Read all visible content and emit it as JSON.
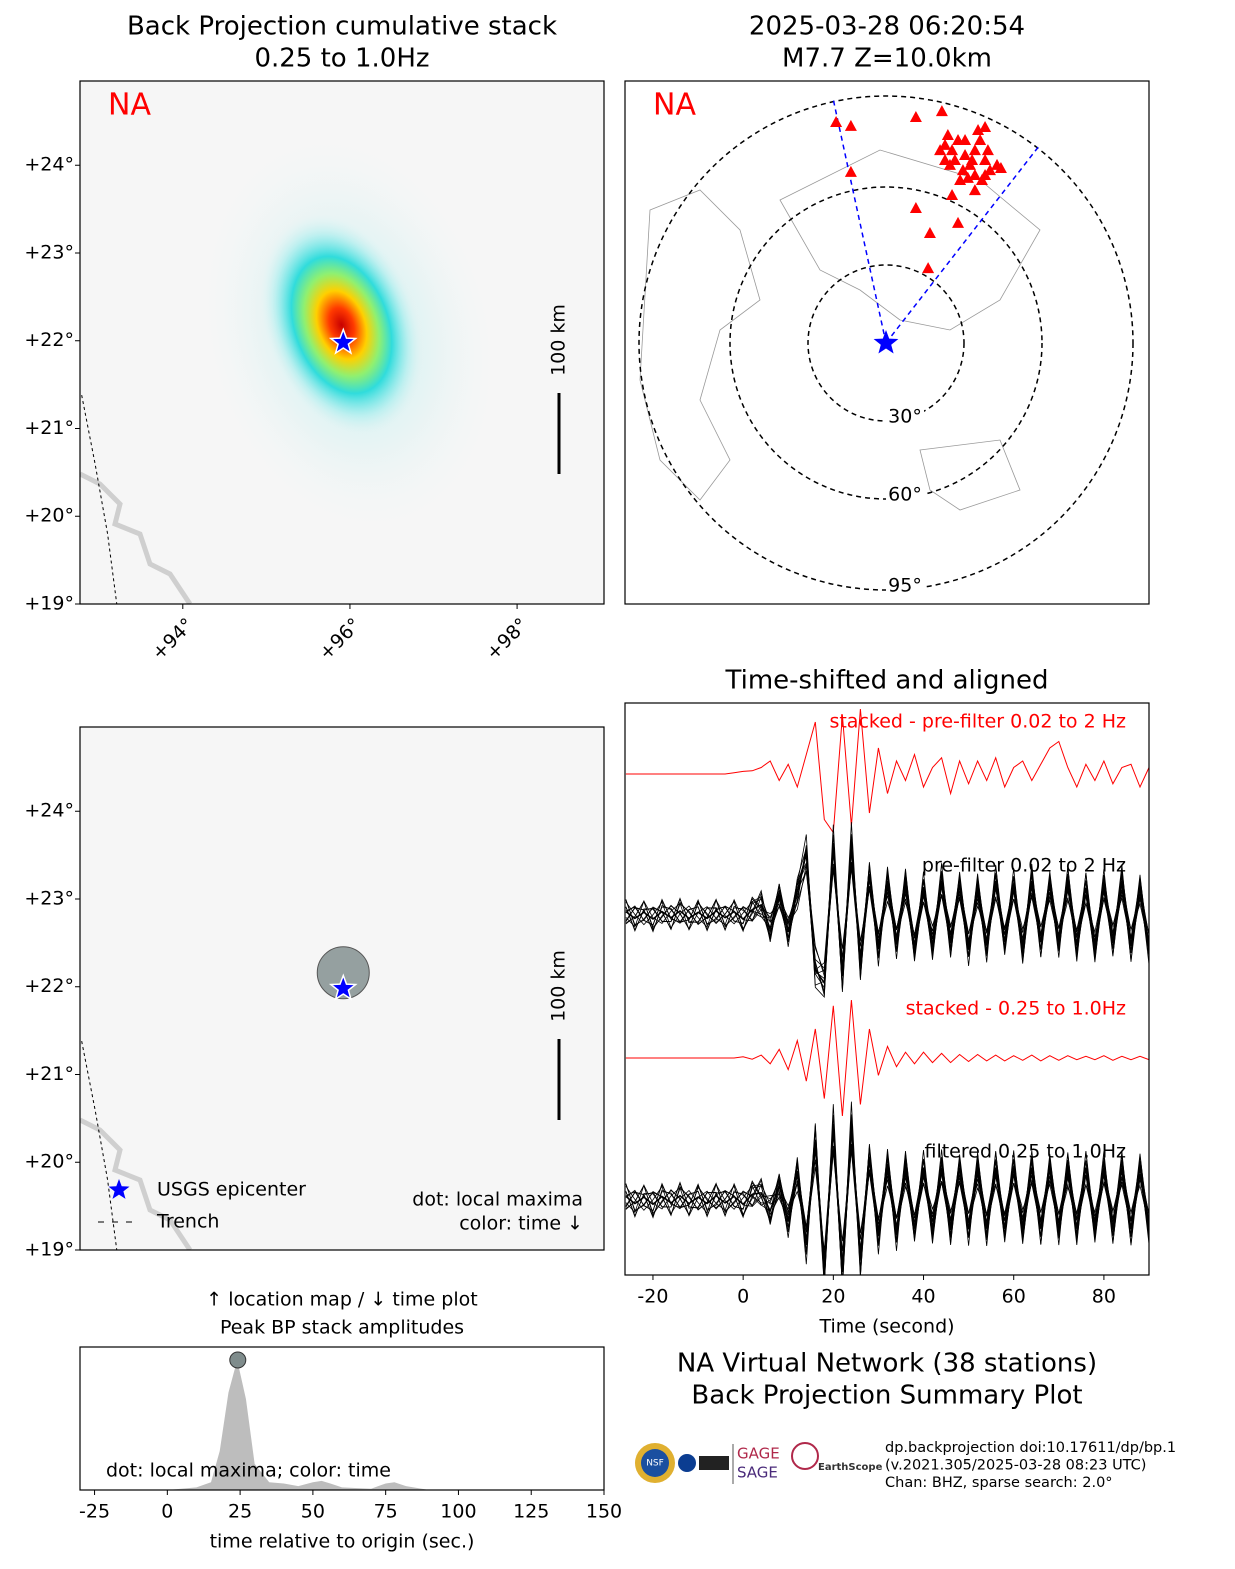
{
  "chart_data": [
    {
      "type": "map",
      "title": "Back Projection cumulative stack",
      "subtitle": "0.25 to 1.0Hz",
      "network": "NA",
      "xlim": [
        92.77,
        99.04
      ],
      "ylim": [
        19,
        24.96
      ],
      "xticks": [
        {
          "value": 94,
          "label": "+94°"
        },
        {
          "value": 96,
          "label": "+96°"
        },
        {
          "value": 98,
          "label": "+98°"
        }
      ],
      "yticks": [
        {
          "value": 19,
          "label": "+19°"
        },
        {
          "value": 20,
          "label": "+20°"
        },
        {
          "value": 21,
          "label": "+21°"
        },
        {
          "value": 22,
          "label": "+22°"
        },
        {
          "value": 23,
          "label": "+23°"
        },
        {
          "value": 24,
          "label": "+24°"
        }
      ],
      "scale_bar": "100 km",
      "peak": [
        95.9,
        22.18
      ],
      "epicenter": [
        95.92,
        21.98
      ],
      "trench": {
        "x": [
          92.79,
          92.95,
          93.1,
          93.21
        ],
        "y": [
          21.38,
          20.6,
          19.8,
          19.0
        ]
      }
    },
    {
      "type": "polar",
      "title": "2025-03-28 06:20:54",
      "subtitle": "M7.7 Z=10.0km",
      "network": "NA",
      "rticks": [
        {
          "value": 30,
          "label": "30°"
        },
        {
          "value": 60,
          "label": "60°"
        },
        {
          "value": 95,
          "label": "95°"
        }
      ],
      "beam_edges": {
        "x": [
          -20.4,
          59.2
        ],
        "y": [
          94.2,
          76.2
        ]
      },
      "stations": {
        "color": "#ff0000",
        "x": [
          -19.2,
          -13.5,
          -13.5,
          11.5,
          21.5,
          23.8,
          25.4,
          27.7,
          26.5,
          30.4,
          29.6,
          32.3,
          34.2,
          35.4,
          38.1,
          36.2,
          38.1,
          34.2,
          40.0,
          42.7,
          44.2,
          31.5,
          38.1,
          25.4,
          11.5,
          16.9,
          27.7,
          16.2,
          22.7,
          28.5,
          33.1,
          39.2,
          24.6,
          36.9,
          20.8,
          30.4,
          34.2,
          22.7
        ],
        "y": [
          85.0,
          83.5,
          65.8,
          86.9,
          89.2,
          80.0,
          74.2,
          78.1,
          70.4,
          72.3,
          66.5,
          68.5,
          74.2,
          81.9,
          83.1,
          78.1,
          70.4,
          64.6,
          66.5,
          68.5,
          67.3,
          63.5,
          64.6,
          56.9,
          51.9,
          42.3,
          46.2,
          28.8,
          76.2,
          62.7,
          70.4,
          74.2,
          68.5,
          62.7,
          74.2,
          78.1,
          58.8,
          70.4
        ]
      }
    },
    {
      "type": "map",
      "xlim": [
        92.77,
        99.04
      ],
      "ylim": [
        19,
        24.96
      ],
      "yticks": [
        {
          "value": 19,
          "label": "+19°"
        },
        {
          "value": 20,
          "label": "+20°"
        },
        {
          "value": 21,
          "label": "+21°"
        },
        {
          "value": 22,
          "label": "+22°"
        },
        {
          "value": 23,
          "label": "+23°"
        },
        {
          "value": 24,
          "label": "+24°"
        }
      ],
      "scale_bar": "100 km",
      "epicenter": [
        95.92,
        21.98
      ],
      "maxima": {
        "x": [
          95.92
        ],
        "y": [
          22.16
        ]
      },
      "trench": {
        "x": [
          92.79,
          92.95,
          93.1,
          93.21
        ],
        "y": [
          21.38,
          20.6,
          19.8,
          19.0
        ]
      },
      "legend": [
        "USGS epicenter",
        "Trench"
      ],
      "annotations": [
        "dot: local maxima",
        "color: time ↓"
      ]
    },
    {
      "type": "area",
      "title": "↑ location map / ↓ time plot",
      "subtitle": "Peak BP stack amplitudes",
      "xlabel": "time relative to origin (sec.)",
      "annotation": "dot: local maxima; color: time",
      "xlim": [
        -30,
        150
      ],
      "ylim": [
        0,
        1.1
      ],
      "xticks": [
        -25,
        0,
        25,
        50,
        75,
        100,
        125,
        150
      ],
      "x": [
        -30,
        0,
        10,
        15,
        18,
        21,
        24,
        27,
        30,
        35,
        40,
        45,
        50,
        53,
        56,
        60,
        70,
        75,
        78,
        82,
        90,
        150
      ],
      "values": [
        0,
        0,
        0.02,
        0.06,
        0.3,
        0.75,
        1.0,
        0.7,
        0.2,
        0.06,
        0.05,
        0.03,
        0.06,
        0.07,
        0.05,
        0.02,
        0.01,
        0.05,
        0.06,
        0.03,
        0,
        0
      ],
      "maxima": {
        "x": [
          24.2
        ],
        "y": [
          1.0
        ]
      }
    },
    {
      "type": "waveform",
      "title": "Time-shifted and aligned",
      "xlabel": "Time (second)",
      "xlim": [
        -26.2,
        90
      ],
      "xticks": [
        -20,
        0,
        20,
        40,
        60,
        80
      ],
      "x": [
        -26,
        -24,
        -22,
        -20,
        -18,
        -16,
        -14,
        -12,
        -10,
        -8,
        -6,
        -4,
        -2,
        0,
        2,
        4,
        6,
        8,
        10,
        12,
        14,
        16,
        18,
        20,
        22,
        24,
        26,
        28,
        30,
        32,
        34,
        36,
        38,
        40,
        42,
        44,
        46,
        48,
        50,
        52,
        54,
        56,
        58,
        60,
        62,
        64,
        66,
        68,
        70,
        72,
        74,
        76,
        78,
        80,
        82,
        84,
        86,
        88,
        90
      ],
      "series": [
        {
          "name": "stacked - pre-filter 0.02 to 2 Hz",
          "color": "#ff0000",
          "values": [
            0,
            0,
            0,
            0,
            0,
            0,
            0,
            0,
            0,
            0,
            0,
            0,
            0.02,
            0.04,
            0.05,
            0.1,
            0.2,
            -0.1,
            0.15,
            -0.2,
            0.3,
            0.8,
            -0.7,
            -0.9,
            0.9,
            -0.8,
            1.0,
            -0.6,
            0.4,
            -0.3,
            0.2,
            -0.1,
            0.3,
            -0.2,
            0.1,
            0.25,
            -0.3,
            0.2,
            -0.15,
            0.2,
            -0.1,
            0.25,
            -0.2,
            0.1,
            0.2,
            -0.1,
            0.15,
            0.4,
            0.5,
            0.1,
            -0.2,
            0.15,
            -0.1,
            0.2,
            -0.15,
            0.1,
            0.15,
            -0.2,
            0.1
          ]
        },
        {
          "name": "pre-filter 0.02 to 2 Hz",
          "color": "#000000",
          "bundle": true,
          "values": [
            0.05,
            -0.05,
            0.04,
            -0.06,
            0.05,
            -0.04,
            0.06,
            -0.05,
            0.04,
            -0.05,
            0.06,
            -0.04,
            0.05,
            -0.06,
            0.08,
            0.15,
            -0.2,
            0.3,
            -0.25,
            0.35,
            0.9,
            -0.8,
            -1,
            1,
            -0.9,
            1,
            -0.7,
            0.6,
            -0.5,
            0.5,
            -0.4,
            0.45,
            -0.5,
            0.4,
            -0.45,
            0.5,
            -0.4,
            0.45,
            -0.5,
            0.4,
            -0.45,
            0.5,
            -0.4,
            0.45,
            -0.5,
            0.5,
            -0.4,
            0.45,
            -0.4,
            0.5,
            -0.45,
            0.4,
            -0.5,
            0.45,
            -0.4,
            0.5,
            -0.45,
            0.4,
            -0.5
          ]
        },
        {
          "name": "stacked - 0.25 to 1.0Hz",
          "color": "#ff0000",
          "values": [
            0,
            0,
            0,
            0,
            0,
            0,
            0,
            0,
            0,
            0,
            0,
            0,
            0,
            0.02,
            -0.02,
            0.05,
            -0.1,
            0.15,
            -0.2,
            0.3,
            -0.4,
            0.5,
            -0.7,
            0.9,
            -1,
            1,
            -0.8,
            0.5,
            -0.3,
            0.2,
            -0.15,
            0.1,
            -0.1,
            0.1,
            -0.08,
            0.08,
            -0.08,
            0.06,
            -0.06,
            0.06,
            -0.05,
            0.05,
            -0.05,
            0.04,
            -0.04,
            0.05,
            -0.05,
            0.04,
            -0.04,
            0.04,
            -0.03,
            0.03,
            -0.03,
            0.04,
            -0.04,
            0.03,
            -0.03,
            0.03,
            -0.03
          ]
        },
        {
          "name": "filtered 0.25 to 1.0Hz",
          "color": "#000000",
          "bundle": true,
          "values": [
            0.05,
            -0.05,
            0.04,
            -0.06,
            0.05,
            -0.04,
            0.06,
            -0.05,
            0.04,
            -0.05,
            0.06,
            -0.04,
            0.05,
            -0.06,
            0.08,
            0.1,
            -0.15,
            0.2,
            -0.3,
            0.4,
            -0.6,
            0.8,
            -1,
            1,
            -1,
            1,
            -0.8,
            0.6,
            -0.5,
            0.5,
            -0.45,
            0.45,
            -0.4,
            0.45,
            -0.4,
            0.45,
            -0.4,
            0.45,
            -0.4,
            0.45,
            -0.4,
            0.45,
            -0.4,
            0.45,
            -0.4,
            0.45,
            -0.4,
            0.45,
            -0.4,
            0.45,
            -0.4,
            0.45,
            -0.4,
            0.45,
            -0.4,
            0.45,
            -0.4,
            0.45,
            -0.4
          ]
        }
      ]
    }
  ],
  "footer": {
    "title": "NA Virtual Network (38 stations)",
    "subtitle": "Back Projection Summary Plot",
    "credits": [
      "dp.backprojection doi:10.17611/dp/bp.1",
      "(v.2021.305/2025-03-28 08:23 UTC)",
      "Chan: BHZ, sparse search: 2.0°"
    ],
    "logos": [
      "NSF",
      "GAGE",
      "SAGE",
      "EarthScope"
    ]
  }
}
